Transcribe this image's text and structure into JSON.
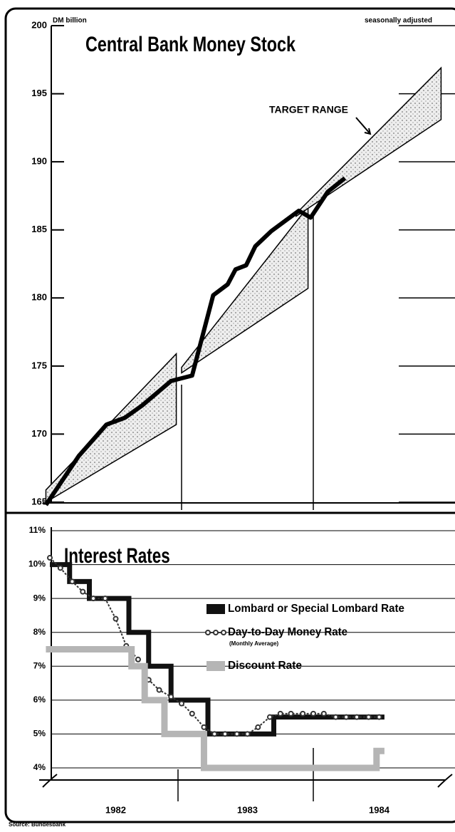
{
  "chart_data": [
    {
      "type": "line",
      "title": "Central Bank Money Stock",
      "unit_label": "DM billion",
      "note": "seasonally adjusted",
      "annotation": "TARGET RANGE",
      "xlim": [
        1982,
        1985
      ],
      "ylim": [
        165,
        200
      ],
      "yticks": [
        165,
        170,
        175,
        180,
        185,
        190,
        195,
        200
      ],
      "x": [
        1981.97,
        1982.22,
        1982.43,
        1982.57,
        1982.7,
        1982.92,
        1983.08,
        1983.24,
        1983.35,
        1983.41,
        1983.49,
        1983.56,
        1983.68,
        1983.89,
        1983.98,
        1984.11,
        1984.24
      ],
      "series": [
        {
          "color": "#000000",
          "values": [
            164.8,
            168.4,
            170.7,
            171.2,
            172.1,
            173.9,
            174.3,
            180.2,
            181.0,
            182.1,
            182.4,
            183.8,
            184.9,
            186.4,
            185.9,
            187.8,
            188.8
          ]
        }
      ],
      "bands": [
        {
          "x": [
            1981.97,
            1982.96
          ],
          "upper": [
            165.9,
            175.9
          ],
          "lower": [
            165.0,
            170.7
          ]
        },
        {
          "x": [
            1983.0,
            1983.96
          ],
          "upper": [
            174.9,
            186.7
          ],
          "lower": [
            174.5,
            180.7
          ]
        },
        {
          "x": [
            1983.87,
            1984.97
          ],
          "upper": [
            186.2,
            196.9
          ],
          "lower": [
            186.0,
            193.1
          ]
        }
      ]
    },
    {
      "type": "step",
      "title": "Interest Rates",
      "source": "Source: Bundesbank",
      "xlim": [
        1982,
        1985
      ],
      "ylim": [
        4,
        11
      ],
      "xticks": [
        {
          "value": 1982.5,
          "label": "1982"
        },
        {
          "value": 1983.5,
          "label": "1983"
        },
        {
          "value": 1984.5,
          "label": "1984"
        }
      ],
      "yticks": [
        {
          "value": 4,
          "label": "4%"
        },
        {
          "value": 5,
          "label": "5%"
        },
        {
          "value": 6,
          "label": "6%"
        },
        {
          "value": 7,
          "label": "7%"
        },
        {
          "value": 8,
          "label": "8%"
        },
        {
          "value": 9,
          "label": "9%"
        },
        {
          "value": 10,
          "label": "10%"
        },
        {
          "value": 11,
          "label": "11%"
        }
      ],
      "grid": true,
      "series": [
        {
          "name": "Lombard or Special Lombard Rate",
          "color": "#111111",
          "style": "step",
          "x": [
            1982.0,
            1982.15,
            1982.3,
            1982.6,
            1982.75,
            1982.92,
            1983.2,
            1983.7,
            1984.54
          ],
          "values": [
            10,
            9.5,
            9.0,
            8.0,
            7.0,
            6.0,
            5.0,
            5.5,
            5.5
          ]
        },
        {
          "name": "Day-to-Day Money Rate",
          "legend_note": "(Monthly Average)",
          "color": "#333333",
          "style": "dots",
          "x": [
            1982.0,
            1982.08,
            1982.17,
            1982.25,
            1982.33,
            1982.42,
            1982.5,
            1982.58,
            1982.67,
            1982.75,
            1982.83,
            1982.92,
            1983.0,
            1983.08,
            1983.17,
            1983.25,
            1983.33,
            1983.42,
            1983.5,
            1983.58,
            1983.67,
            1983.75,
            1983.83,
            1983.92,
            1984.0,
            1984.08,
            1984.17,
            1984.25,
            1984.33,
            1984.42,
            1984.5
          ],
          "values": [
            10.2,
            9.9,
            9.5,
            9.2,
            9.0,
            9.0,
            8.4,
            7.6,
            7.2,
            6.6,
            6.3,
            6.1,
            5.9,
            5.6,
            5.2,
            5.0,
            5.0,
            5.0,
            5.0,
            5.2,
            5.5,
            5.6,
            5.6,
            5.6,
            5.6,
            5.6,
            5.5,
            5.5,
            5.5,
            5.5,
            5.5
          ]
        },
        {
          "name": "Discount Rate",
          "color": "#b5b5b5",
          "style": "step",
          "x": [
            1981.97,
            1982.62,
            1982.72,
            1982.87,
            1983.17,
            1984.48,
            1984.54
          ],
          "values": [
            7.5,
            7.0,
            6.0,
            5.0,
            4.0,
            4.5,
            4.5
          ]
        }
      ]
    }
  ]
}
